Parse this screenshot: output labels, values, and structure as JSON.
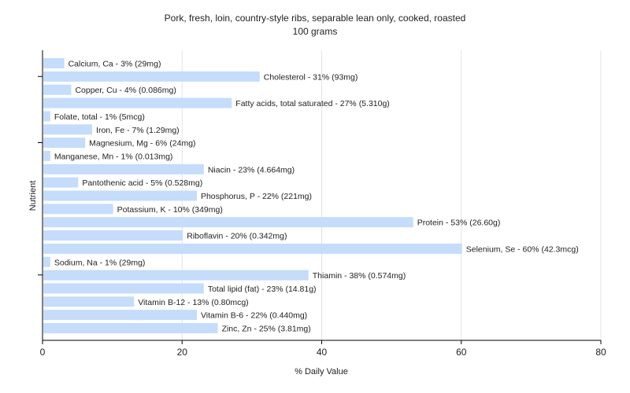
{
  "chart_data": {
    "type": "bar",
    "orientation": "horizontal",
    "title": "Pork, fresh, loin, country-style ribs, separable lean only, cooked, roasted",
    "subtitle": "100 grams",
    "xlabel": "% Daily Value",
    "ylabel": "Nutrient",
    "xlim": [
      0,
      80
    ],
    "xticks": [
      "0",
      "20",
      "40",
      "60",
      "80"
    ],
    "grid": true,
    "bar_color": "#c5dcfb",
    "categories": [
      "Calcium, Ca",
      "Cholesterol",
      "Copper, Cu",
      "Fatty acids, total saturated",
      "Folate, total",
      "Iron, Fe",
      "Magnesium, Mg",
      "Manganese, Mn",
      "Niacin",
      "Pantothenic acid",
      "Phosphorus, P",
      "Potassium, K",
      "Protein",
      "Riboflavin",
      "Selenium, Se",
      "Sodium, Na",
      "Thiamin",
      "Total lipid (fat)",
      "Vitamin B-12",
      "Vitamin B-6",
      "Zinc, Zn"
    ],
    "values": [
      3,
      31,
      4,
      27,
      1,
      7,
      6,
      1,
      23,
      5,
      22,
      10,
      53,
      20,
      60,
      1,
      38,
      23,
      13,
      22,
      25
    ],
    "labels": [
      "Calcium, Ca - 3% (29mg)",
      "Cholesterol - 31% (93mg)",
      "Copper, Cu - 4% (0.086mg)",
      "Fatty acids, total saturated - 27% (5.310g)",
      "Folate, total - 1% (5mcg)",
      "Iron, Fe - 7% (1.29mg)",
      "Magnesium, Mg - 6% (24mg)",
      "Manganese, Mn - 1% (0.013mg)",
      "Niacin - 23% (4.664mg)",
      "Pantothenic acid - 5% (0.528mg)",
      "Phosphorus, P - 22% (221mg)",
      "Potassium, K - 10% (349mg)",
      "Protein - 53% (26.60g)",
      "Riboflavin - 20% (0.342mg)",
      "Selenium, Se - 60% (42.3mcg)",
      "Sodium, Na - 1% (29mg)",
      "Thiamin - 38% (0.574mg)",
      "Total lipid (fat) - 23% (14.81g)",
      "Vitamin B-12 - 13% (0.80mcg)",
      "Vitamin B-6 - 22% (0.440mg)",
      "Zinc, Zn - 25% (3.81mg)"
    ]
  }
}
